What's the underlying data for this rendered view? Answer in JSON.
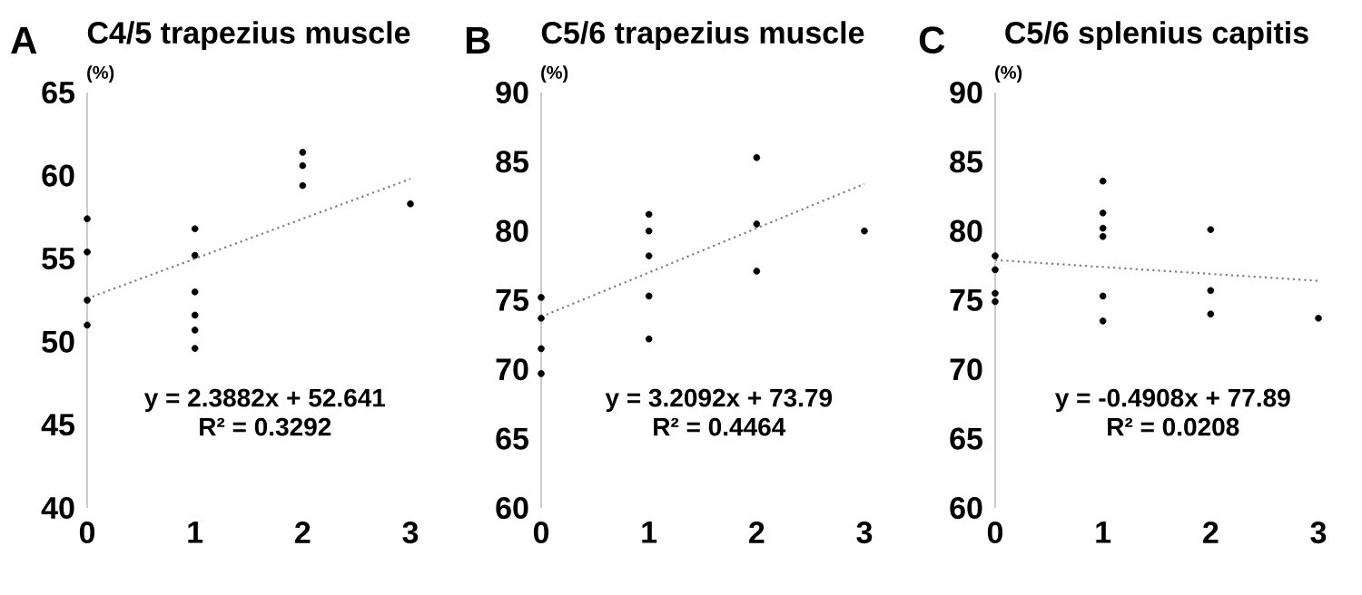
{
  "chart_data": [
    {
      "type": "scatter",
      "title": "C4/5 trapezius muscle",
      "ylabel": "(%)",
      "annotations": [
        "A",
        "y = 2.3882x + 52.641",
        "R² = 0.3292"
      ],
      "xlim": [
        0,
        3
      ],
      "xticks": [
        0,
        1,
        2,
        3
      ],
      "ylim": [
        40,
        65
      ],
      "yticks": [
        40,
        45,
        50,
        55,
        60,
        65
      ],
      "marker": "circle",
      "series": [
        {
          "color": "#000000",
          "x": [
            0,
            0,
            0,
            0,
            1,
            1,
            1,
            1,
            1,
            1,
            2,
            2,
            2,
            3
          ],
          "values": [
            57.4,
            55.4,
            52.5,
            51.0,
            56.8,
            55.2,
            53.0,
            51.6,
            50.7,
            49.6,
            61.4,
            60.6,
            59.4,
            58.3
          ]
        },
        {
          "type": "line",
          "color": "#808080",
          "line_style": "dotted",
          "marker": "none",
          "x": [
            0,
            3
          ],
          "values": [
            52.6,
            59.8
          ]
        }
      ]
    },
    {
      "type": "scatter",
      "title": "C5/6 trapezius muscle",
      "ylabel": "(%)",
      "annotations": [
        "B",
        "y = 3.2092x + 73.79",
        "R² = 0.4464"
      ],
      "xlim": [
        0,
        3
      ],
      "xticks": [
        0,
        1,
        2,
        3
      ],
      "ylim": [
        60,
        90
      ],
      "yticks": [
        60,
        65,
        70,
        75,
        80,
        85,
        90
      ],
      "marker": "circle",
      "series": [
        {
          "color": "#000000",
          "x": [
            0,
            0,
            0,
            0,
            1,
            1,
            1,
            1,
            1,
            2,
            2,
            2,
            3
          ],
          "values": [
            75.2,
            73.7,
            71.5,
            69.7,
            81.2,
            80.0,
            78.2,
            75.3,
            72.2,
            85.3,
            80.5,
            77.1,
            80.0
          ]
        },
        {
          "type": "line",
          "color": "#808080",
          "line_style": "dotted",
          "marker": "none",
          "x": [
            0,
            3
          ],
          "values": [
            73.8,
            83.4
          ]
        }
      ]
    },
    {
      "type": "scatter",
      "title": "C5/6 splenius capitis",
      "ylabel": "(%)",
      "annotations": [
        "C",
        "y = -0.4908x + 77.89",
        "R² = 0.0208"
      ],
      "xlim": [
        0,
        3
      ],
      "xticks": [
        0,
        1,
        2,
        3
      ],
      "ylim": [
        60,
        90
      ],
      "yticks": [
        60,
        65,
        70,
        75,
        80,
        85,
        90
      ],
      "marker": "circle",
      "series": [
        {
          "color": "#000000",
          "x": [
            0,
            0,
            0,
            0,
            1,
            1,
            1,
            1,
            1,
            1,
            2,
            2,
            2,
            3
          ],
          "values": [
            78.2,
            77.2,
            75.5,
            74.9,
            83.6,
            81.3,
            80.2,
            79.6,
            75.3,
            73.5,
            80.1,
            75.7,
            74.0,
            73.7
          ]
        },
        {
          "type": "line",
          "color": "#808080",
          "line_style": "dotted",
          "marker": "none",
          "x": [
            0,
            3
          ],
          "values": [
            77.9,
            76.4
          ]
        }
      ]
    }
  ]
}
